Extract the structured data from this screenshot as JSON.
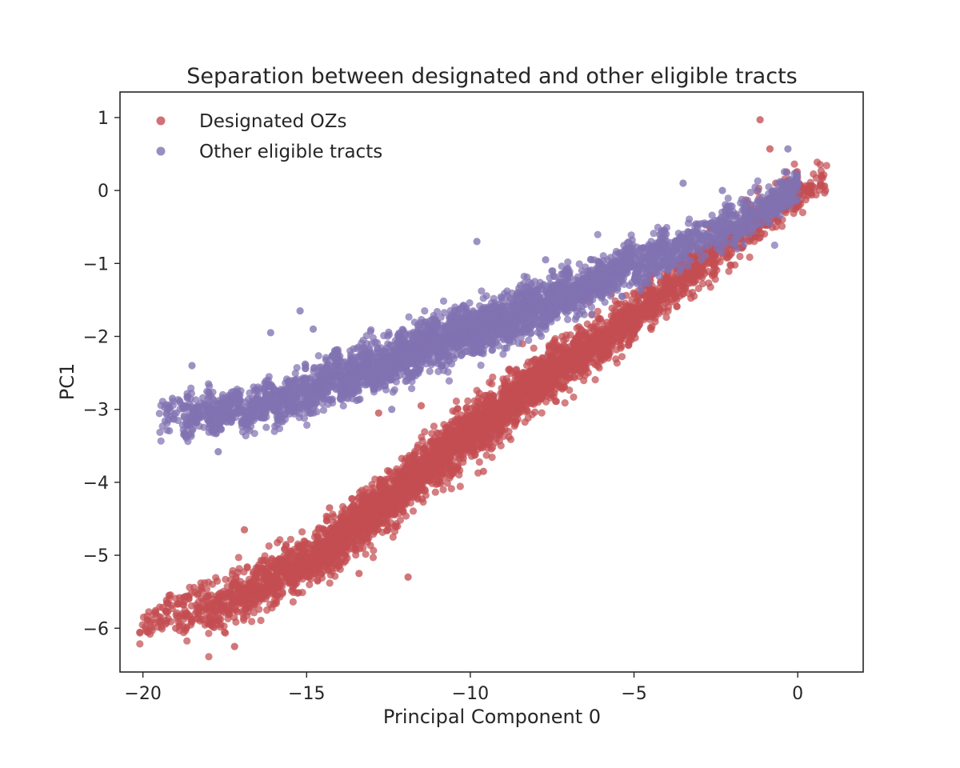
{
  "chart_data": {
    "type": "scatter",
    "title": "Separation between designated and other eligible tracts",
    "xlabel": "Principal Component 0",
    "ylabel": "PC1",
    "xlim": [
      -20.7,
      2.0
    ],
    "ylim": [
      -6.6,
      1.35
    ],
    "xticks": [
      -20,
      -15,
      -10,
      -5,
      0
    ],
    "xtick_labels": [
      "−20",
      "−15",
      "−10",
      "−5",
      "0"
    ],
    "yticks": [
      1,
      0,
      -1,
      -2,
      -3,
      -4,
      -5,
      -6
    ],
    "ytick_labels": [
      "1",
      "0",
      "−1",
      "−2",
      "−3",
      "−4",
      "−5",
      "−6"
    ],
    "grid": false,
    "legend_position": "top-left",
    "series": [
      {
        "name": "Designated OZs",
        "color": "#c44e52",
        "bands": [
          [
            -19.6,
            -5.85,
            0.22,
            50
          ],
          [
            -18.5,
            -5.75,
            0.28,
            90
          ],
          [
            -17.5,
            -5.65,
            0.3,
            150
          ],
          [
            -16.5,
            -5.45,
            0.3,
            200
          ],
          [
            -15.5,
            -5.2,
            0.3,
            240
          ],
          [
            -14.5,
            -4.95,
            0.32,
            280
          ],
          [
            -13.5,
            -4.6,
            0.34,
            300
          ],
          [
            -12.5,
            -4.25,
            0.34,
            320
          ],
          [
            -11.5,
            -3.85,
            0.34,
            340
          ],
          [
            -10.5,
            -3.5,
            0.34,
            360
          ],
          [
            -9.5,
            -3.15,
            0.34,
            360
          ],
          [
            -8.5,
            -2.8,
            0.34,
            340
          ],
          [
            -7.5,
            -2.5,
            0.32,
            320
          ],
          [
            -6.5,
            -2.2,
            0.3,
            290
          ],
          [
            -5.5,
            -1.9,
            0.3,
            260
          ],
          [
            -4.5,
            -1.55,
            0.28,
            220
          ],
          [
            -3.5,
            -1.2,
            0.28,
            170
          ],
          [
            -2.5,
            -0.85,
            0.28,
            130
          ],
          [
            -1.5,
            -0.5,
            0.28,
            110
          ],
          [
            -0.5,
            -0.15,
            0.25,
            150
          ],
          [
            0.4,
            0.05,
            0.2,
            60
          ]
        ],
        "outliers": [
          [
            -1.15,
            0.97
          ],
          [
            -0.85,
            0.57
          ],
          [
            -19.6,
            -5.8
          ],
          [
            -19.2,
            -5.55
          ],
          [
            -16.9,
            -4.65
          ],
          [
            -14.3,
            -4.35
          ],
          [
            -12.8,
            -3.05
          ],
          [
            -11.5,
            -2.95
          ],
          [
            -9.6,
            -3.85
          ],
          [
            -8.8,
            -2.45
          ],
          [
            -11.9,
            -5.3
          ],
          [
            -13.4,
            -5.25
          ],
          [
            -17.2,
            -6.25
          ],
          [
            0.85,
            0.0
          ],
          [
            -19.0,
            -6.0
          ]
        ]
      },
      {
        "name": "Other eligible tracts",
        "color": "#8172b2",
        "bands": [
          [
            -19.0,
            -3.0,
            0.2,
            40
          ],
          [
            -18.3,
            -3.05,
            0.22,
            120
          ],
          [
            -17.5,
            -3.05,
            0.22,
            150
          ],
          [
            -16.5,
            -2.95,
            0.24,
            160
          ],
          [
            -15.5,
            -2.85,
            0.26,
            200
          ],
          [
            -14.5,
            -2.65,
            0.28,
            230
          ],
          [
            -13.5,
            -2.5,
            0.3,
            260
          ],
          [
            -12.5,
            -2.35,
            0.3,
            280
          ],
          [
            -11.5,
            -2.15,
            0.3,
            300
          ],
          [
            -10.5,
            -2.0,
            0.3,
            310
          ],
          [
            -9.5,
            -1.85,
            0.3,
            320
          ],
          [
            -8.5,
            -1.7,
            0.3,
            300
          ],
          [
            -7.5,
            -1.5,
            0.28,
            260
          ],
          [
            -6.5,
            -1.35,
            0.26,
            230
          ],
          [
            -5.5,
            -1.1,
            0.26,
            200
          ],
          [
            -4.5,
            -0.95,
            0.26,
            170
          ],
          [
            -3.5,
            -0.75,
            0.24,
            130
          ],
          [
            -2.5,
            -0.55,
            0.24,
            110
          ],
          [
            -1.5,
            -0.35,
            0.24,
            110
          ],
          [
            -0.5,
            -0.1,
            0.22,
            130
          ]
        ],
        "outliers": [
          [
            -0.3,
            0.57
          ],
          [
            -3.5,
            0.1
          ],
          [
            -2.3,
            0.0
          ],
          [
            -9.8,
            -0.7
          ],
          [
            -15.2,
            -1.65
          ],
          [
            -16.1,
            -1.95
          ],
          [
            -18.5,
            -2.4
          ],
          [
            -17.7,
            -3.58
          ],
          [
            -12.4,
            -3.0
          ],
          [
            -19.1,
            -2.85
          ],
          [
            -14.8,
            -1.9
          ],
          [
            -7.7,
            -0.95
          ]
        ]
      }
    ]
  }
}
